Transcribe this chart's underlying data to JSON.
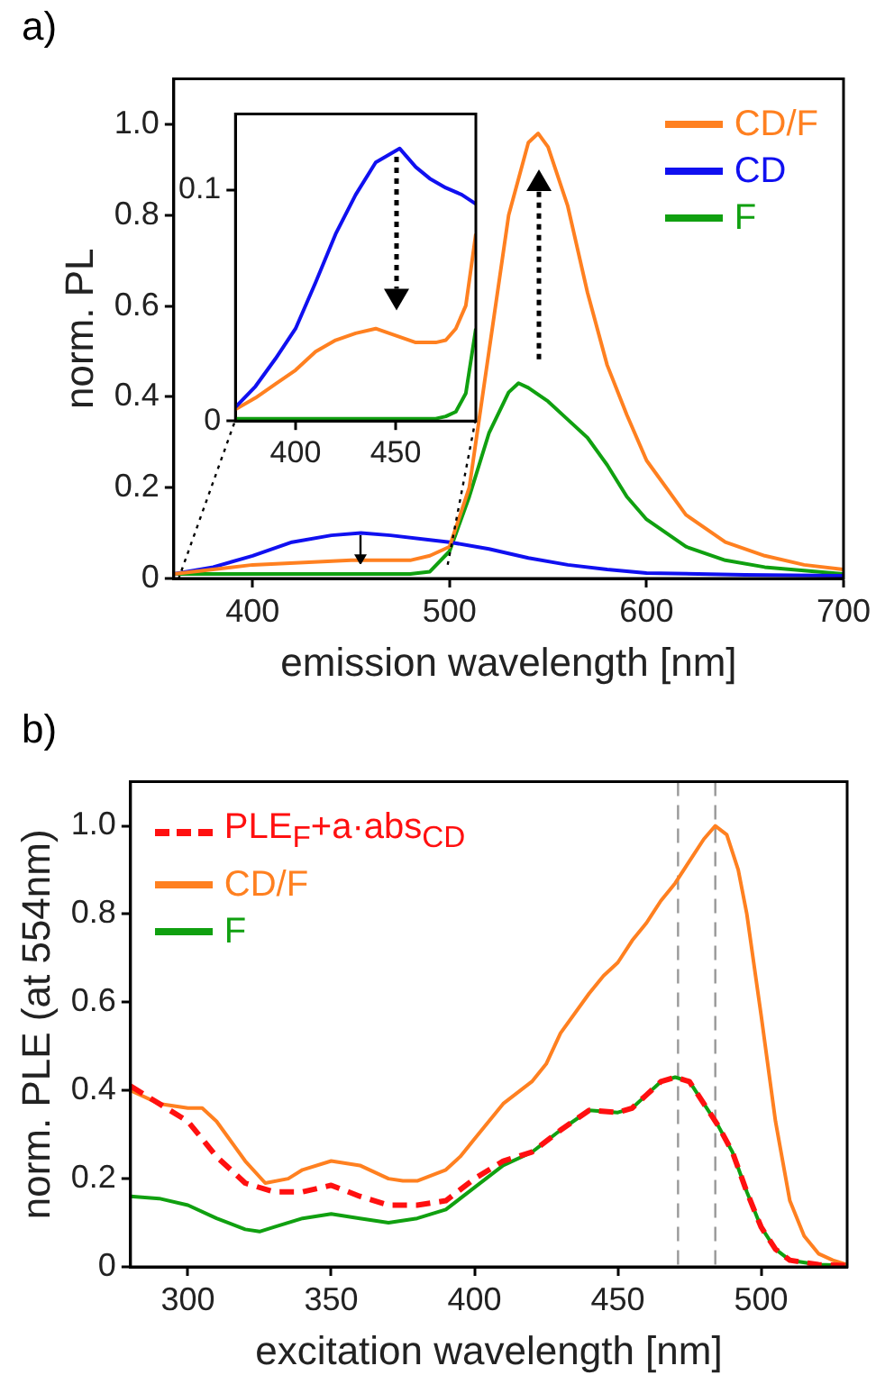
{
  "chart_data": [
    {
      "type": "line",
      "title": "a)",
      "xlabel": "emission wavelength [nm]",
      "ylabel": "norm. PL",
      "xlim": [
        360,
        700
      ],
      "ylim": [
        0,
        1.1
      ],
      "xticks": [
        400,
        500,
        600,
        700
      ],
      "yticks": [
        0,
        0.2,
        0.4,
        0.6,
        0.8,
        {
          "value": 1,
          "label": "1.0"
        }
      ],
      "legend": "top right",
      "grid": false,
      "series": [
        {
          "name": "CD/F",
          "color": "#ff8020",
          "x": [
            360,
            400,
            450,
            480,
            490,
            500,
            510,
            520,
            530,
            540,
            545,
            550,
            560,
            570,
            580,
            590,
            600,
            620,
            640,
            660,
            680,
            700
          ],
          "values": [
            0.01,
            0.03,
            0.04,
            0.04,
            0.05,
            0.07,
            0.2,
            0.5,
            0.8,
            0.96,
            0.98,
            0.95,
            0.82,
            0.63,
            0.47,
            0.36,
            0.26,
            0.14,
            0.08,
            0.05,
            0.03,
            0.02
          ]
        },
        {
          "name": "CD",
          "color": "#1010f0",
          "x": [
            360,
            380,
            400,
            420,
            440,
            455,
            470,
            490,
            500,
            520,
            540,
            560,
            580,
            600,
            650,
            700
          ],
          "values": [
            0.01,
            0.025,
            0.05,
            0.08,
            0.095,
            0.1,
            0.095,
            0.085,
            0.08,
            0.065,
            0.045,
            0.03,
            0.02,
            0.012,
            0.008,
            0.006
          ]
        },
        {
          "name": "F",
          "color": "#10a010",
          "x": [
            360,
            480,
            490,
            500,
            510,
            520,
            530,
            535,
            540,
            550,
            560,
            570,
            580,
            590,
            600,
            620,
            640,
            660,
            700
          ],
          "values": [
            0.01,
            0.01,
            0.015,
            0.06,
            0.18,
            0.32,
            0.41,
            0.43,
            0.42,
            0.39,
            0.35,
            0.31,
            0.25,
            0.18,
            0.13,
            0.07,
            0.04,
            0.025,
            0.01
          ]
        }
      ]
    },
    {
      "type": "line",
      "xlim": [
        370,
        490
      ],
      "ylim": [
        0,
        0.133
      ],
      "xticks": [
        400,
        450
      ],
      "yticks": [
        0,
        0.1
      ],
      "grid": false,
      "series": [
        {
          "color": "#1010f0",
          "x": [
            370,
            380,
            390,
            400,
            410,
            420,
            430,
            440,
            452,
            460,
            467,
            475,
            483,
            490
          ],
          "values": [
            0.006,
            0.015,
            0.027,
            0.04,
            0.06,
            0.081,
            0.098,
            0.112,
            0.118,
            0.11,
            0.105,
            0.101,
            0.098,
            0.094
          ]
        },
        {
          "color": "#ff8020",
          "x": [
            370,
            380,
            390,
            400,
            410,
            420,
            430,
            440,
            450,
            460,
            470,
            475,
            480,
            485,
            490
          ],
          "values": [
            0.005,
            0.01,
            0.016,
            0.022,
            0.03,
            0.035,
            0.038,
            0.04,
            0.037,
            0.034,
            0.034,
            0.035,
            0.04,
            0.05,
            0.081
          ]
        },
        {
          "color": "#10a010",
          "x": [
            370,
            400,
            440,
            470,
            475,
            480,
            485,
            490
          ],
          "values": [
            0.001,
            0.001,
            0.001,
            0.001,
            0.002,
            0.004,
            0.012,
            0.04
          ]
        }
      ]
    },
    {
      "type": "line",
      "title": "b)",
      "xlabel": "excitation wavelength [nm]",
      "ylabel": "norm. PLE (at 554nm)",
      "xlim": [
        280,
        530
      ],
      "ylim": [
        0,
        1.1
      ],
      "xticks": [
        300,
        350,
        400,
        450,
        500
      ],
      "yticks": [
        0,
        0.2,
        0.4,
        0.6,
        0.8,
        {
          "value": 1,
          "label": "1.0"
        }
      ],
      "legend": "top left",
      "grid": false,
      "ref_lines": [
        {
          "axis": "x",
          "value": 471,
          "color": "#999999",
          "line_style": "dashed"
        },
        {
          "axis": "x",
          "value": 484,
          "color": "#999999",
          "line_style": "dashed"
        }
      ],
      "series": [
        {
          "name": "PLE$_{F}$+a·abs$_{CD}$",
          "color": "#ff1010",
          "line_style": "dashed",
          "x": [
            280,
            290,
            300,
            310,
            320,
            330,
            340,
            350,
            360,
            370,
            380,
            390,
            400,
            410,
            420,
            430,
            440,
            450,
            455,
            460,
            465,
            470,
            475,
            480,
            485,
            490,
            495,
            500,
            505,
            510,
            520,
            530
          ],
          "values": [
            0.41,
            0.37,
            0.33,
            0.25,
            0.19,
            0.17,
            0.17,
            0.185,
            0.16,
            0.14,
            0.14,
            0.15,
            0.2,
            0.24,
            0.26,
            0.31,
            0.355,
            0.35,
            0.36,
            0.39,
            0.42,
            0.43,
            0.42,
            0.37,
            0.32,
            0.26,
            0.17,
            0.09,
            0.04,
            0.015,
            0.005,
            0.003
          ]
        },
        {
          "name": "CD/F",
          "color": "#ff8020",
          "x": [
            280,
            290,
            300,
            305,
            310,
            320,
            327,
            335,
            340,
            350,
            360,
            370,
            375,
            380,
            390,
            395,
            400,
            410,
            420,
            425,
            430,
            440,
            445,
            450,
            455,
            460,
            465,
            470,
            475,
            480,
            484,
            488,
            492,
            495,
            500,
            505,
            510,
            515,
            520,
            525,
            530
          ],
          "values": [
            0.4,
            0.37,
            0.36,
            0.36,
            0.33,
            0.24,
            0.19,
            0.2,
            0.22,
            0.24,
            0.23,
            0.2,
            0.195,
            0.195,
            0.22,
            0.25,
            0.29,
            0.37,
            0.42,
            0.46,
            0.53,
            0.62,
            0.66,
            0.69,
            0.74,
            0.78,
            0.83,
            0.87,
            0.92,
            0.97,
            1.0,
            0.98,
            0.9,
            0.8,
            0.57,
            0.33,
            0.15,
            0.07,
            0.03,
            0.015,
            0.005
          ]
        },
        {
          "name": "F",
          "color": "#10a010",
          "x": [
            280,
            290,
            300,
            310,
            320,
            325,
            330,
            340,
            350,
            360,
            370,
            380,
            390,
            400,
            410,
            420,
            430,
            440,
            450,
            455,
            460,
            465,
            470,
            475,
            480,
            485,
            490,
            495,
            500,
            505,
            510,
            520,
            530
          ],
          "values": [
            0.16,
            0.155,
            0.14,
            0.11,
            0.085,
            0.08,
            0.09,
            0.11,
            0.12,
            0.11,
            0.1,
            0.11,
            0.13,
            0.18,
            0.23,
            0.26,
            0.31,
            0.355,
            0.35,
            0.36,
            0.39,
            0.42,
            0.43,
            0.42,
            0.37,
            0.32,
            0.26,
            0.17,
            0.09,
            0.04,
            0.015,
            0.005,
            0.003
          ]
        }
      ]
    }
  ]
}
